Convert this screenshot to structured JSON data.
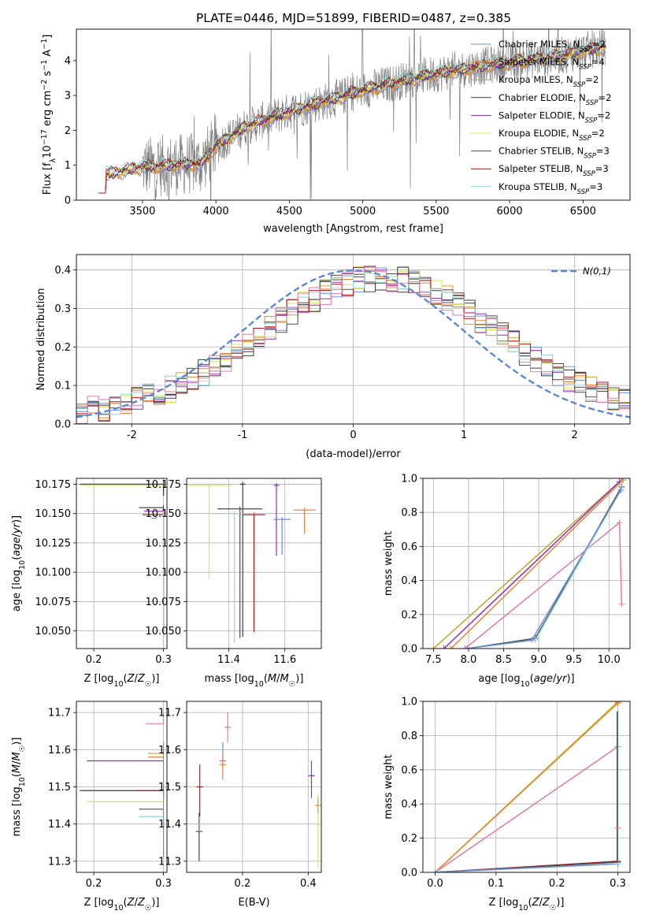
{
  "figure_title": "PLATE=0446, MJD=51899, FIBERID=0487, z=0.385",
  "colors": {
    "Chabrier MILES": "#6b8fd6",
    "Salpeter MILES": "#e8853a",
    "Kroupa MILES": "#c8a23c",
    "Chabrier ELODIE": "#3a3a3a",
    "Salpeter ELODIE": "#8e2fb5",
    "Kroupa ELODIE": "#d8e84a",
    "Chabrier STELIB": "#4a4a4a",
    "Salpeter STELIB": "#b01818",
    "Kroupa STELIB": "#8fd6d6",
    "normal": "#5f87d8",
    "pink": "#e27aa8",
    "data": "#808080"
  },
  "chart_data": [
    {
      "id": "spectrum",
      "type": "line",
      "xlabel": "wavelength [Angstrom, rest frame]",
      "xlim": [
        3050,
        6820
      ],
      "ylim": [
        0,
        4.9
      ],
      "xticks": [
        "3500",
        "4000",
        "4500",
        "5000",
        "5500",
        "6000",
        "6500"
      ],
      "yticks": [
        "0",
        "1",
        "2",
        "3",
        "4"
      ],
      "legend_position": "upper right",
      "legend": [
        {
          "name": "Chabrier MILES",
          "sub": "SSP",
          "value": "2"
        },
        {
          "name": "Salpeter MILES",
          "sub": "SSP",
          "value": "4"
        },
        {
          "name": "Kroupa MILES",
          "sub": "SSP",
          "value": "2"
        },
        {
          "name": "Chabrier ELODIE",
          "sub": "SSP",
          "value": "2"
        },
        {
          "name": "Salpeter ELODIE",
          "sub": "SSP",
          "value": "2"
        },
        {
          "name": "Kroupa ELODIE",
          "sub": "SSP",
          "value": "2"
        },
        {
          "name": "Chabrier STELIB",
          "sub": "SSP",
          "value": "3"
        },
        {
          "name": "Salpeter STELIB",
          "sub": "SSP",
          "value": "3"
        },
        {
          "name": "Kroupa STELIB",
          "sub": "SSP",
          "value": "3"
        }
      ],
      "continuum_knots": [
        [
          3200,
          0.7
        ],
        [
          3500,
          0.95
        ],
        [
          3700,
          1.0
        ],
        [
          3900,
          1.05
        ],
        [
          4000,
          1.55
        ],
        [
          4200,
          2.1
        ],
        [
          4500,
          2.55
        ],
        [
          4800,
          2.9
        ],
        [
          5000,
          3.15
        ],
        [
          5300,
          3.45
        ],
        [
          5600,
          3.7
        ],
        [
          6000,
          3.95
        ],
        [
          6300,
          4.1
        ],
        [
          6650,
          4.4
        ]
      ],
      "data_range": [
        3500,
        6650
      ],
      "grid": false
    },
    {
      "id": "residuals",
      "type": "histogram",
      "xlabel": "(data-model)/error",
      "ylabel": "Normed distribution",
      "xlim": [
        -2.5,
        2.5
      ],
      "ylim": [
        0,
        0.44
      ],
      "xticks": [
        "-2",
        "-1",
        "0",
        "1",
        "2"
      ],
      "yticks": [
        "0.0",
        "0.1",
        "0.2",
        "0.3",
        "0.4"
      ],
      "legend_position": "upper right",
      "normal_label": "N(0,1)",
      "bin_width": 0.1,
      "grid": true
    },
    {
      "id": "age_vs_Z",
      "type": "scatter",
      "xlabel": "Z [log10(Z/Z☉)]",
      "ylabel": "age  [log10(age/yr)]",
      "xlim": [
        0.175,
        0.305
      ],
      "ylim": [
        10.035,
        10.18
      ],
      "xticks": [
        "0.2",
        "0.3"
      ],
      "yticks": [
        "10.050",
        "10.075",
        "10.100",
        "10.125",
        "10.150",
        "10.175"
      ],
      "points": [
        {
          "s": "Kroupa MILES",
          "x": 0.3,
          "y": 10.175,
          "xl": 0.18,
          "yd": 0.01
        },
        {
          "s": "Kroupa ELODIE",
          "x": 0.3,
          "y": 10.174,
          "xl": 0.18,
          "yd": 0.005
        },
        {
          "s": "Chabrier ELODIE",
          "x": 0.3,
          "y": 10.175,
          "xl": 0.18,
          "yd": 0.01
        },
        {
          "s": "Chabrier STELIB",
          "x": 0.3,
          "y": 10.155,
          "xl": 0.265,
          "yd": 0.11
        },
        {
          "s": "Salpeter STELIB",
          "x": 0.3,
          "y": 10.149,
          "xl": 0.27,
          "yd": 0.1
        },
        {
          "s": "Chabrier MILES",
          "x": 0.29,
          "y": 10.146,
          "xl": 0.282,
          "yd": 0.0
        },
        {
          "s": "Salpeter ELODIE",
          "x": 0.3,
          "y": 10.152,
          "xl": 0.272,
          "yd": 0.005
        },
        {
          "s": "Kroupa STELIB",
          "x": 0.3,
          "y": 10.15,
          "xl": 0.3,
          "yd": 0.11
        }
      ],
      "grid": true
    },
    {
      "id": "age_vs_mass",
      "type": "scatter",
      "xlabel": "mass [log10(M/M☉)]",
      "xlim": [
        11.25,
        11.73
      ],
      "ylim": [
        10.035,
        10.18
      ],
      "xticks": [
        "11.4",
        "11.6"
      ],
      "yticks": [
        "10.050",
        "10.075",
        "10.100",
        "10.125",
        "10.150",
        "10.175"
      ],
      "points": [
        {
          "s": "Kroupa ELODIE",
          "x": 11.33,
          "y": 10.174,
          "xs": 0.08,
          "yd": 0.08
        },
        {
          "s": "Chabrier ELODIE",
          "x": 11.45,
          "y": 10.175,
          "xs": 0.0,
          "yd": 0.13
        },
        {
          "s": "Salpeter ELODIE",
          "x": 11.57,
          "y": 10.174,
          "xs": 0.0,
          "yd": 0.06
        },
        {
          "s": "Chabrier STELIB",
          "x": 11.44,
          "y": 10.154,
          "xs": 0.08,
          "yd": 0.11
        },
        {
          "s": "Salpeter STELIB",
          "x": 11.49,
          "y": 10.149,
          "xs": 0.04,
          "yd": 0.1
        },
        {
          "s": "Kroupa STELIB",
          "x": 11.42,
          "y": 10.15,
          "xs": 0.08,
          "yd": 0.11
        },
        {
          "s": "Chabrier MILES",
          "x": 11.59,
          "y": 10.145,
          "xs": 0.03,
          "yd": 0.03
        },
        {
          "s": "Salpeter MILES",
          "x": 11.67,
          "y": 10.153,
          "xs": 0.04,
          "yd": 0.02
        }
      ],
      "grid": true
    },
    {
      "id": "massweight_vs_age",
      "type": "line",
      "xlabel": "age  [log10(age/yr)]",
      "ylabel": "mass weight",
      "xlim": [
        7.35,
        10.3
      ],
      "ylim": [
        0,
        1.0
      ],
      "xticks": [
        "7.5",
        "8.0",
        "8.5",
        "9.0",
        "9.5",
        "10.0"
      ],
      "yticks": [
        "0.0",
        "0.2",
        "0.4",
        "0.6",
        "0.8",
        "1.0"
      ],
      "series": [
        {
          "s": "Kroupa ELODIE",
          "x": [
            7.5,
            10.2
          ],
          "y": [
            0.0,
            1.0
          ]
        },
        {
          "s": "Kroupa MILES",
          "x": [
            7.5,
            10.2
          ],
          "y": [
            0.0,
            1.0
          ]
        },
        {
          "s": "Salpeter ELODIE",
          "x": [
            7.65,
            10.15
          ],
          "y": [
            0.0,
            0.98
          ]
        },
        {
          "s": "Salpeter MILES",
          "x": [
            7.75,
            10.2
          ],
          "y": [
            0.0,
            0.99
          ]
        },
        {
          "s": "pink",
          "x": [
            7.95,
            10.15,
            10.18
          ],
          "y": [
            0.0,
            0.74,
            0.26
          ]
        },
        {
          "s": "Chabrier STELIB",
          "x": [
            7.98,
            8.95,
            10.18
          ],
          "y": [
            0.0,
            0.06,
            0.95
          ]
        },
        {
          "s": "Kroupa STELIB",
          "x": [
            7.98,
            8.95,
            10.18
          ],
          "y": [
            0.0,
            0.05,
            0.94
          ]
        },
        {
          "s": "Chabrier MILES",
          "x": [
            7.98,
            8.9,
            10.17
          ],
          "y": [
            0.0,
            0.05,
            0.93
          ]
        }
      ],
      "grid": true
    },
    {
      "id": "mass_vs_Z",
      "type": "scatter",
      "xlabel": "Z [log10(Z/Z☉)]",
      "ylabel": "mass [log10(M/M☉)]",
      "xlim": [
        0.175,
        0.305
      ],
      "ylim": [
        11.27,
        11.73
      ],
      "xticks": [
        "0.2",
        "0.3"
      ],
      "yticks": [
        "11.3",
        "11.4",
        "11.5",
        "11.6",
        "11.7"
      ],
      "points": [
        {
          "s": "pink",
          "x": 0.3,
          "y": 11.67,
          "xl": 0.275,
          "yu": 0.03,
          "yd": 0.0
        },
        {
          "s": "Kroupa MILES",
          "x": 0.3,
          "y": 11.59,
          "xl": 0.278,
          "yu": 0.0,
          "yd": 0.0
        },
        {
          "s": "Salpeter MILES",
          "x": 0.3,
          "y": 11.58,
          "xl": 0.278,
          "yu": 0.0,
          "yd": 0.0
        },
        {
          "s": "Salpeter ELODIE",
          "x": 0.3,
          "y": 11.57,
          "xl": 0.19,
          "yu": 0.0,
          "yd": 0.0
        },
        {
          "s": "Chabrier ELODIE",
          "x": 0.3,
          "y": 11.49,
          "xl": 0.18,
          "yu": 0.0,
          "yd": 0.0
        },
        {
          "s": "Salpeter STELIB",
          "x": 0.3,
          "y": 11.49,
          "xl": 0.26,
          "yu": 0.0,
          "yd": 0.02
        },
        {
          "s": "Kroupa ELODIE",
          "x": 0.3,
          "y": 11.46,
          "xl": 0.19,
          "yu": 0.0,
          "yd": 0.0
        },
        {
          "s": "Chabrier STELIB",
          "x": 0.3,
          "y": 11.44,
          "xl": 0.265,
          "yu": 0.0,
          "yd": 0.0
        },
        {
          "s": "Kroupa STELIB",
          "x": 0.3,
          "y": 11.42,
          "xl": 0.265,
          "yu": 0.0,
          "yd": 0.12
        },
        {
          "s": "Chabrier MILES",
          "x": 0.3,
          "y": 11.6,
          "xl": 0.3,
          "yu": 0.02,
          "yd": 0.29
        }
      ],
      "grid": true
    },
    {
      "id": "mass_vs_EBV",
      "type": "scatter",
      "xlabel": "E(B-V)",
      "xlim": [
        0.03,
        0.44
      ],
      "ylim": [
        11.27,
        11.73
      ],
      "xticks": [
        "0.2",
        "0.4"
      ],
      "yticks": [
        "11.3",
        "11.4",
        "11.5",
        "11.6",
        "11.7"
      ],
      "points": [
        {
          "s": "pink",
          "x": 0.155,
          "y": 11.66,
          "yu": 0.04,
          "yd": 0.04
        },
        {
          "s": "Chabrier MILES",
          "x": 0.14,
          "y": 11.57,
          "yu": 0.05,
          "yd": 0.02
        },
        {
          "s": "Salpeter MILES",
          "x": 0.14,
          "y": 11.56,
          "yu": 0.03,
          "yd": 0.04
        },
        {
          "s": "Salpeter STELIB",
          "x": 0.07,
          "y": 11.5,
          "yu": 0.06,
          "yd": 0.08
        },
        {
          "s": "Chabrier STELIB",
          "x": 0.068,
          "y": 11.38,
          "yu": 0.05,
          "yd": 0.08
        },
        {
          "s": "Kroupa STELIB",
          "x": 0.07,
          "y": 11.4,
          "yu": 0.02,
          "yd": 0.02
        },
        {
          "s": "Salpeter ELODIE",
          "x": 0.41,
          "y": 11.53,
          "yu": 0.04,
          "yd": 0.06
        },
        {
          "s": "Kroupa ELODIE",
          "x": 0.43,
          "y": 11.4,
          "yu": 0.08,
          "yd": 0.12
        },
        {
          "s": "Kroupa MILES",
          "x": 0.43,
          "y": 11.45,
          "yu": 0.02,
          "yd": 0.02
        }
      ],
      "grid": true
    },
    {
      "id": "massweight_vs_Z",
      "type": "line",
      "xlabel": "Z [log10(Z/Z☉)]",
      "ylabel": "mass weight",
      "xlim": [
        -0.02,
        0.32
      ],
      "ylim": [
        0,
        1.0
      ],
      "xticks": [
        "0.0",
        "0.1",
        "0.2",
        "0.3"
      ],
      "yticks": [
        "0.0",
        "0.2",
        "0.4",
        "0.6",
        "0.8",
        "1.0"
      ],
      "series": [
        {
          "s": "Kroupa ELODIE",
          "x": [
            0.0,
            0.3
          ],
          "y": [
            0.0,
            1.0
          ]
        },
        {
          "s": "Kroupa MILES",
          "x": [
            0.0,
            0.3
          ],
          "y": [
            0.0,
            0.995
          ]
        },
        {
          "s": "Salpeter MILES",
          "x": [
            0.0,
            0.3
          ],
          "y": [
            0.0,
            0.99
          ]
        },
        {
          "s": "pink",
          "x": [
            0.0,
            0.3
          ],
          "y": [
            0.0,
            0.735
          ]
        },
        {
          "s": "Salpeter STELIB",
          "x": [
            0.0,
            0.3
          ],
          "y": [
            0.0,
            0.065
          ]
        },
        {
          "s": "Chabrier STELIB",
          "x": [
            0.0,
            0.3
          ],
          "y": [
            0.0,
            0.06
          ]
        },
        {
          "s": "Kroupa STELIB",
          "x": [
            0.0,
            0.3
          ],
          "y": [
            0.0,
            0.05
          ]
        },
        {
          "s": "Chabrier MILES",
          "x": [
            0.0,
            0.3
          ],
          "y": [
            0.0,
            0.05
          ]
        }
      ],
      "vertical_markers": [
        {
          "s": "Kroupa STELIB",
          "x": 0.3,
          "y0": 0.05,
          "y1": 0.95
        },
        {
          "s": "Chabrier STELIB",
          "x": 0.299,
          "y0": 0.06,
          "y1": 0.94
        },
        {
          "s": "pink",
          "x": 0.3,
          "y0": 0.26,
          "y1": 0.26
        }
      ],
      "grid": true
    }
  ]
}
